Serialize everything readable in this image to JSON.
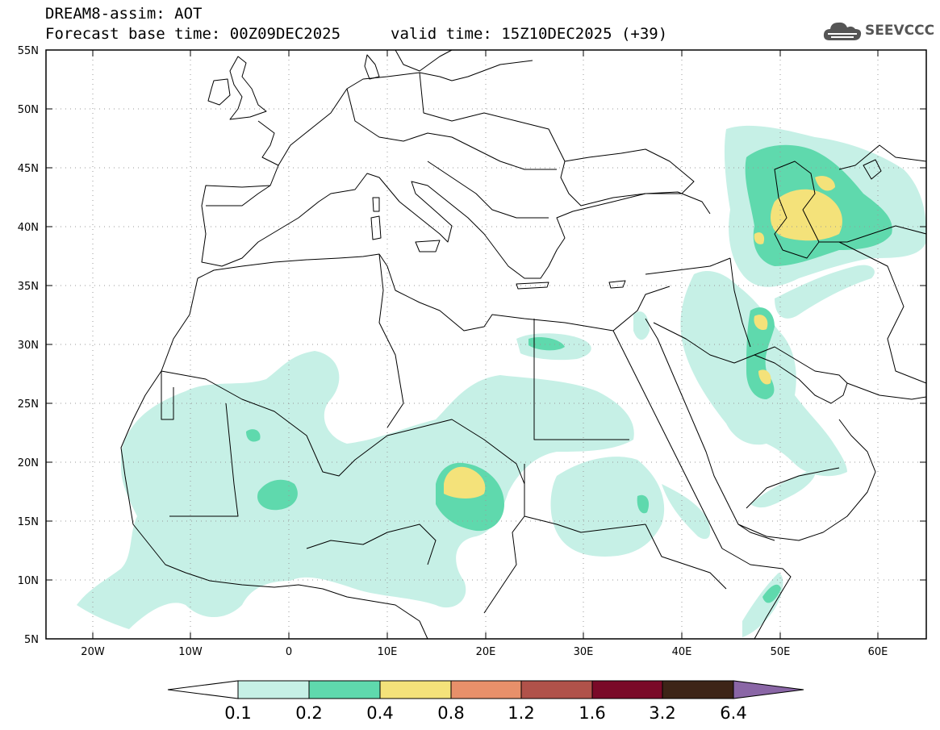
{
  "header": {
    "title": "DREAM8-assim: AOT",
    "base_time": "Forecast base time: 00Z09DEC2025",
    "valid_time": "valid time: 15Z10DEC2025 (+39)",
    "logo_text": "SEEVCCC",
    "logo_icon": "cloud-icon"
  },
  "map": {
    "lat_labels": [
      "55N",
      "50N",
      "45N",
      "40N",
      "35N",
      "30N",
      "25N",
      "20N",
      "15N",
      "10N",
      "5N"
    ],
    "lon_labels": [
      "20W",
      "10W",
      "0",
      "10E",
      "20E",
      "30E",
      "40E",
      "50E",
      "60E"
    ],
    "grid": "dotted",
    "frame_color": "#000000"
  },
  "colorbar": {
    "colors": [
      "#ffffff",
      "#c6f0e6",
      "#5fd9ad",
      "#f4e27a",
      "#e8906a",
      "#b0524a",
      "#7a0a28",
      "#3d2417",
      "#8a66a6"
    ],
    "labels": [
      "0.1",
      "0.2",
      "0.4",
      "0.8",
      "1.2",
      "1.6",
      "3.2",
      "6.4"
    ]
  }
}
